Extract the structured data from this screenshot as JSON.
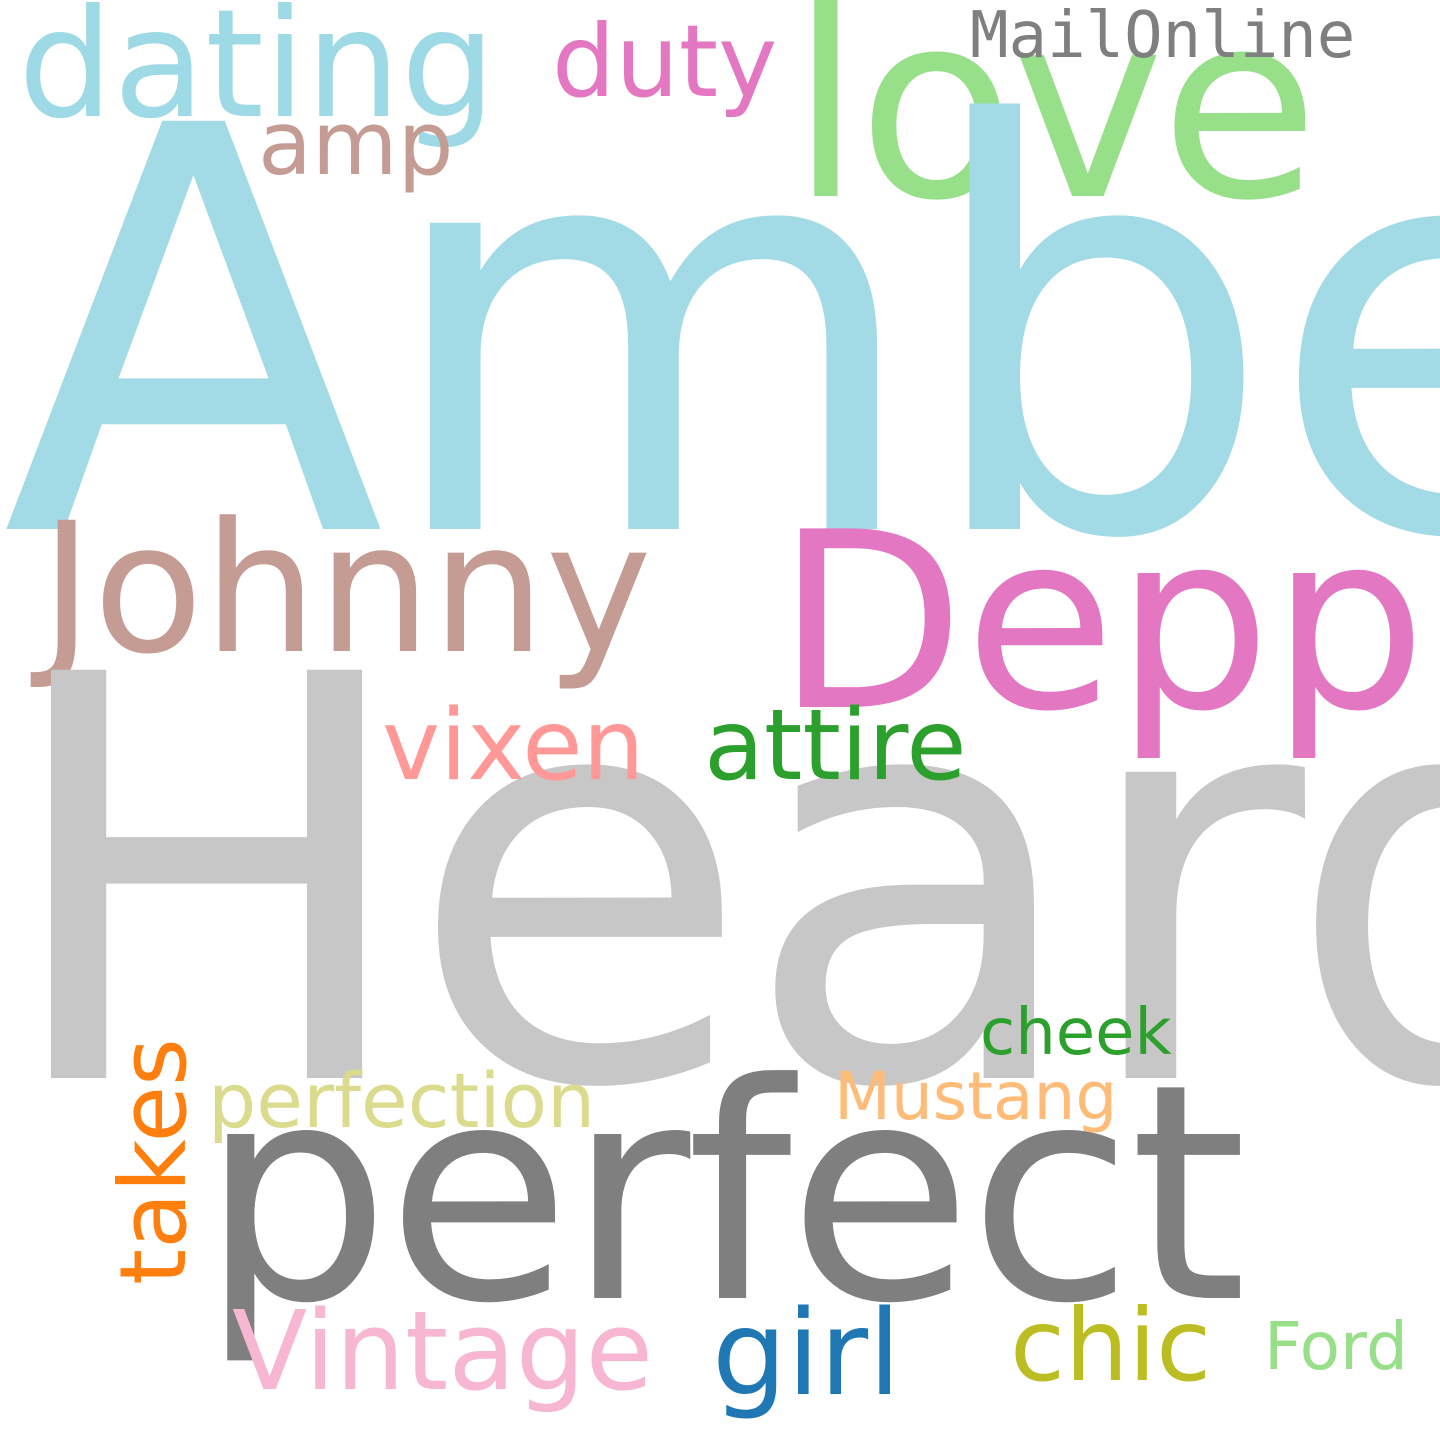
{
  "words": {
    "amber": {
      "text": "Amber",
      "color": "#a2dae6"
    },
    "heard": {
      "text": "Heard",
      "color": "#c7c7c7"
    },
    "perfect": {
      "text": "perfect",
      "color": "#7f7f7f"
    },
    "johnny": {
      "text": "Johnny",
      "color": "#c49c94"
    },
    "depp": {
      "text": "Depp",
      "color": "#e377c2"
    },
    "love": {
      "text": "love",
      "color": "#98df8a"
    },
    "dating": {
      "text": "dating",
      "color": "#9edae5"
    },
    "duty": {
      "text": "duty",
      "color": "#e377c2"
    },
    "amp": {
      "text": "amp",
      "color": "#c49c94"
    },
    "mailonline": {
      "text": "MailOnline",
      "color": "#7f7f7f"
    },
    "vixen": {
      "text": "vixen",
      "color": "#ff9896"
    },
    "attire": {
      "text": "attire",
      "color": "#2ca02c"
    },
    "perfection": {
      "text": "perfection",
      "color": "#dbdb8d"
    },
    "mustang": {
      "text": "Mustang",
      "color": "#ffbb78"
    },
    "cheek": {
      "text": "cheek",
      "color": "#2ca02c"
    },
    "takes": {
      "text": "takes",
      "color": "#ff7f0e"
    },
    "vintage": {
      "text": "Vintage",
      "color": "#f7b6d2"
    },
    "girl": {
      "text": "girl",
      "color": "#1f77b4"
    },
    "chic": {
      "text": "chic",
      "color": "#bcbd22"
    },
    "ford": {
      "text": "Ford",
      "color": "#98df8a"
    }
  }
}
